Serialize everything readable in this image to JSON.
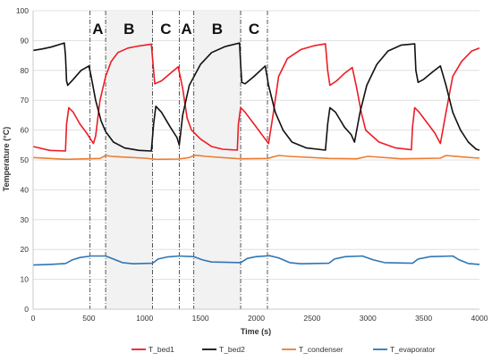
{
  "chart_data": {
    "type": "line",
    "title": "",
    "xlabel": "Time (s)",
    "ylabel": "Temperature (°C)",
    "xlim": [
      0,
      4000
    ],
    "ylim": [
      0,
      100
    ],
    "x_ticks": [
      0,
      500,
      1000,
      1500,
      2000,
      2500,
      3000,
      3500,
      4000
    ],
    "y_ticks": [
      0,
      10,
      20,
      30,
      40,
      50,
      60,
      70,
      80,
      90,
      100
    ],
    "grid": "horizontal",
    "legend_position": "bottom",
    "phase_regions": [
      {
        "label": "A",
        "start": 510,
        "end": 650,
        "shaded": false
      },
      {
        "label": "B",
        "start": 650,
        "end": 1070,
        "shaded": true
      },
      {
        "label": "C",
        "start": 1070,
        "end": 1310,
        "shaded": false
      },
      {
        "label": "A",
        "start": 1310,
        "end": 1440,
        "shaded": false
      },
      {
        "label": "B",
        "start": 1440,
        "end": 1860,
        "shaded": true
      },
      {
        "label": "C",
        "start": 1860,
        "end": 2100,
        "shaded": false
      }
    ],
    "series": [
      {
        "name": "T_bed1",
        "color": "#ee1c25",
        "points": [
          [
            0,
            54.5
          ],
          [
            150,
            53.2
          ],
          [
            290,
            53.0
          ],
          [
            300,
            62
          ],
          [
            320,
            67.5
          ],
          [
            360,
            66
          ],
          [
            420,
            62
          ],
          [
            480,
            59
          ],
          [
            540,
            55.5
          ],
          [
            560,
            58
          ],
          [
            600,
            70
          ],
          [
            650,
            78
          ],
          [
            700,
            83
          ],
          [
            760,
            86
          ],
          [
            850,
            87.5
          ],
          [
            950,
            88.2
          ],
          [
            1060,
            88.8
          ],
          [
            1080,
            80
          ],
          [
            1090,
            75.5
          ],
          [
            1150,
            76.5
          ],
          [
            1230,
            79
          ],
          [
            1300,
            81.2
          ],
          [
            1340,
            74
          ],
          [
            1380,
            64
          ],
          [
            1420,
            60
          ],
          [
            1500,
            57
          ],
          [
            1600,
            54.5
          ],
          [
            1700,
            53.6
          ],
          [
            1830,
            53.3
          ],
          [
            1840,
            62
          ],
          [
            1860,
            67.5
          ],
          [
            1900,
            66
          ],
          [
            1980,
            62
          ],
          [
            2060,
            58
          ],
          [
            2110,
            55.5
          ],
          [
            2150,
            65
          ],
          [
            2200,
            78
          ],
          [
            2280,
            84
          ],
          [
            2400,
            87
          ],
          [
            2520,
            88.3
          ],
          [
            2620,
            88.9
          ],
          [
            2640,
            80
          ],
          [
            2660,
            75
          ],
          [
            2720,
            76.5
          ],
          [
            2790,
            79
          ],
          [
            2860,
            81
          ],
          [
            2900,
            74
          ],
          [
            2940,
            66
          ],
          [
            2980,
            60
          ],
          [
            3100,
            56
          ],
          [
            3250,
            54
          ],
          [
            3390,
            53.4
          ],
          [
            3400,
            61
          ],
          [
            3420,
            67.5
          ],
          [
            3460,
            66
          ],
          [
            3540,
            62
          ],
          [
            3600,
            59
          ],
          [
            3650,
            55.5
          ],
          [
            3700,
            66
          ],
          [
            3760,
            78
          ],
          [
            3840,
            83
          ],
          [
            3930,
            86.5
          ],
          [
            4000,
            87.5
          ]
        ]
      },
      {
        "name": "T_bed2",
        "color": "#111111",
        "points": [
          [
            0,
            86.7
          ],
          [
            80,
            87.2
          ],
          [
            160,
            87.8
          ],
          [
            280,
            89.2
          ],
          [
            290,
            85
          ],
          [
            300,
            76.5
          ],
          [
            310,
            75
          ],
          [
            360,
            77
          ],
          [
            430,
            80
          ],
          [
            500,
            81.5
          ],
          [
            520,
            78
          ],
          [
            560,
            70
          ],
          [
            610,
            63
          ],
          [
            650,
            59.5
          ],
          [
            720,
            56
          ],
          [
            820,
            54
          ],
          [
            950,
            53.2
          ],
          [
            1060,
            53
          ],
          [
            1080,
            62
          ],
          [
            1100,
            68
          ],
          [
            1150,
            66
          ],
          [
            1230,
            61
          ],
          [
            1290,
            57.5
          ],
          [
            1310,
            55
          ],
          [
            1340,
            65
          ],
          [
            1400,
            75
          ],
          [
            1500,
            82
          ],
          [
            1600,
            86
          ],
          [
            1720,
            88
          ],
          [
            1850,
            89.2
          ],
          [
            1860,
            82
          ],
          [
            1870,
            76
          ],
          [
            1900,
            75.5
          ],
          [
            1980,
            78
          ],
          [
            2080,
            81.5
          ],
          [
            2110,
            75
          ],
          [
            2170,
            66
          ],
          [
            2240,
            60
          ],
          [
            2320,
            56
          ],
          [
            2450,
            54
          ],
          [
            2620,
            53.3
          ],
          [
            2640,
            62
          ],
          [
            2660,
            67.5
          ],
          [
            2710,
            66
          ],
          [
            2790,
            61
          ],
          [
            2850,
            58.5
          ],
          [
            2880,
            56
          ],
          [
            2930,
            66
          ],
          [
            2990,
            75
          ],
          [
            3080,
            82
          ],
          [
            3180,
            86.5
          ],
          [
            3300,
            88.5
          ],
          [
            3420,
            88.9
          ],
          [
            3430,
            80
          ],
          [
            3450,
            76
          ],
          [
            3500,
            77
          ],
          [
            3580,
            79.5
          ],
          [
            3650,
            81.5
          ],
          [
            3700,
            75
          ],
          [
            3760,
            66
          ],
          [
            3830,
            60
          ],
          [
            3900,
            56
          ],
          [
            3970,
            53.6
          ],
          [
            4000,
            53.3
          ]
        ]
      },
      {
        "name": "T_condenser",
        "color": "#ec7d31",
        "points": [
          [
            0,
            50.8
          ],
          [
            300,
            50.2
          ],
          [
            600,
            50.5
          ],
          [
            650,
            51.5
          ],
          [
            700,
            51.2
          ],
          [
            1000,
            50.6
          ],
          [
            1100,
            50.2
          ],
          [
            1300,
            50.3
          ],
          [
            1400,
            50.8
          ],
          [
            1450,
            51.6
          ],
          [
            1550,
            51.2
          ],
          [
            1850,
            50.4
          ],
          [
            2100,
            50.5
          ],
          [
            2200,
            51.5
          ],
          [
            2300,
            51.2
          ],
          [
            2650,
            50.5
          ],
          [
            2900,
            50.4
          ],
          [
            3000,
            51.2
          ],
          [
            3300,
            50.4
          ],
          [
            3650,
            50.6
          ],
          [
            3700,
            51.5
          ],
          [
            3850,
            51.0
          ],
          [
            4000,
            50.6
          ]
        ]
      },
      {
        "name": "T_evaporator",
        "color": "#2e75b6",
        "points": [
          [
            0,
            14.8
          ],
          [
            150,
            15.0
          ],
          [
            290,
            15.3
          ],
          [
            350,
            16.5
          ],
          [
            420,
            17.3
          ],
          [
            520,
            17.8
          ],
          [
            650,
            17.8
          ],
          [
            720,
            16.8
          ],
          [
            800,
            15.6
          ],
          [
            900,
            15.2
          ],
          [
            1070,
            15.4
          ],
          [
            1120,
            16.8
          ],
          [
            1200,
            17.5
          ],
          [
            1310,
            17.8
          ],
          [
            1440,
            17.6
          ],
          [
            1520,
            16.5
          ],
          [
            1600,
            15.8
          ],
          [
            1860,
            15.6
          ],
          [
            1920,
            17.0
          ],
          [
            2000,
            17.6
          ],
          [
            2120,
            17.9
          ],
          [
            2200,
            17.2
          ],
          [
            2300,
            15.6
          ],
          [
            2400,
            15.2
          ],
          [
            2650,
            15.4
          ],
          [
            2700,
            16.8
          ],
          [
            2800,
            17.6
          ],
          [
            2950,
            17.8
          ],
          [
            3050,
            16.5
          ],
          [
            3150,
            15.6
          ],
          [
            3400,
            15.4
          ],
          [
            3450,
            16.8
          ],
          [
            3560,
            17.6
          ],
          [
            3760,
            17.8
          ],
          [
            3820,
            16.5
          ],
          [
            3900,
            15.3
          ],
          [
            4000,
            15.0
          ]
        ]
      }
    ]
  }
}
